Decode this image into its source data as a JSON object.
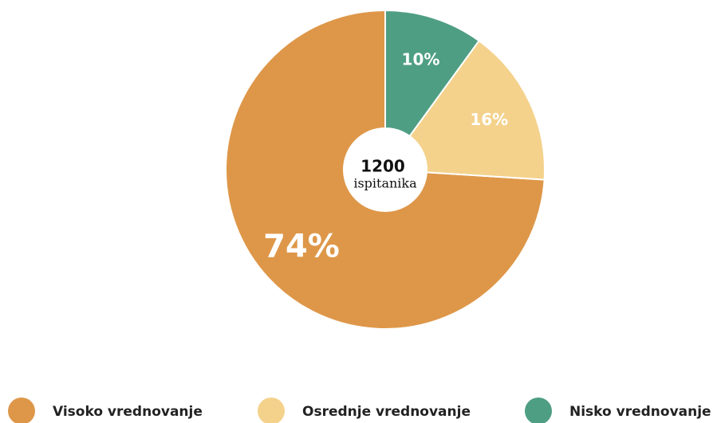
{
  "chart_data": {
    "type": "pie",
    "categories": [
      "Visoko vrednovanje",
      "Osrednje vrednovanje",
      "Nisko vrednovanje"
    ],
    "values": [
      74,
      16,
      10
    ],
    "value_labels": [
      "74%",
      "16%",
      "10%"
    ],
    "colors": [
      "#de9749",
      "#f4d28c",
      "#4e9e83"
    ],
    "center_value": 1200,
    "center_label": "ispitanika"
  }
}
